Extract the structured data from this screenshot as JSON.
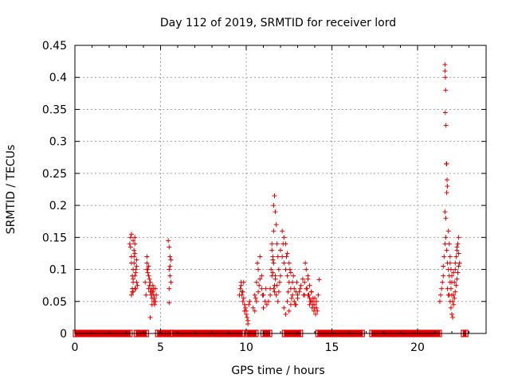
{
  "chart_data": {
    "type": "scatter",
    "title": "Day 112 of 2019, SRMTID for receiver lord",
    "xlabel": "GPS time / hours",
    "ylabel": "SRMTID / TECUs",
    "xlim": [
      0,
      24
    ],
    "ylim": [
      0,
      0.45
    ],
    "xticks": [
      0,
      5,
      10,
      15,
      20
    ],
    "yticks": [
      0,
      0.05,
      0.1,
      0.15,
      0.2,
      0.25,
      0.3,
      0.35,
      0.4,
      0.45
    ],
    "xtick_labels": [
      "0",
      "5",
      "10",
      "15",
      "20"
    ],
    "ytick_labels": [
      "0",
      "0.05",
      "0.1",
      "0.15",
      "0.2",
      "0.25",
      "0.3",
      "0.35",
      "0.4",
      "0.45"
    ],
    "grid": true,
    "marker": "+",
    "color": "#e00000",
    "series": [
      {
        "x": [
          3.2,
          3.25,
          3.3,
          3.3,
          3.35,
          3.4,
          3.4,
          3.45,
          3.5,
          3.5,
          3.55,
          3.6,
          3.3,
          3.35,
          3.4,
          3.45,
          3.5,
          3.55,
          3.6,
          3.65,
          3.3,
          3.4,
          3.5,
          3.6,
          3.35,
          3.45,
          3.55,
          3.25,
          3.4,
          3.5,
          4.1,
          4.15,
          4.2,
          4.2,
          4.25,
          4.3,
          4.35,
          4.4,
          4.45,
          4.5,
          4.55,
          4.6,
          4.65,
          4.7,
          4.75,
          4.2,
          4.3,
          4.4,
          4.5,
          4.6,
          4.7,
          4.25,
          4.35,
          4.45,
          4.55,
          4.65,
          4.4,
          4.5,
          4.3,
          4.6,
          5.45,
          5.5,
          5.55,
          5.6,
          5.5,
          5.55,
          5.6,
          5.5,
          5.55,
          5.5,
          9.6,
          9.65,
          9.7,
          9.75,
          9.8,
          9.85,
          9.9,
          9.95,
          10.0,
          10.05,
          10.1,
          10.15,
          10.2,
          9.7,
          9.8,
          9.9,
          10.0,
          10.1,
          9.75,
          9.85,
          10.4,
          10.5,
          10.6,
          10.7,
          10.8,
          10.9,
          11.0,
          11.1,
          11.2,
          10.5,
          10.6,
          10.7,
          10.8,
          10.9,
          11.0,
          10.55,
          10.75,
          10.95,
          11.15,
          10.65,
          11.3,
          11.4,
          11.5,
          11.5,
          11.55,
          11.6,
          11.6,
          11.65,
          11.7,
          11.75,
          11.8,
          11.85,
          11.9,
          11.95,
          12.0,
          11.4,
          11.5,
          11.6,
          11.7,
          11.8,
          11.9,
          11.45,
          11.55,
          11.65,
          11.75,
          11.85,
          11.6,
          11.65,
          11.7,
          11.55,
          12.0,
          12.1,
          12.2,
          12.3,
          12.4,
          12.5,
          12.6,
          12.7,
          12.8,
          12.9,
          13.0,
          13.1,
          13.2,
          13.3,
          13.4,
          12.1,
          12.2,
          12.3,
          12.4,
          12.5,
          12.6,
          12.7,
          12.8,
          12.9,
          13.0,
          12.2,
          12.3,
          12.4,
          12.5,
          12.6,
          12.15,
          12.35,
          12.55,
          12.75,
          12.95,
          13.15,
          13.35,
          12.45,
          12.65,
          12.85,
          13.4,
          13.5,
          13.6,
          13.7,
          13.8,
          13.9,
          14.0,
          14.1,
          14.2,
          13.5,
          13.6,
          13.7,
          13.8,
          13.9,
          14.0,
          14.1,
          13.55,
          13.65,
          13.75,
          13.85,
          13.95,
          14.05,
          13.6,
          13.8,
          14.0,
          14.25,
          13.45,
          13.7,
          13.9,
          14.15,
          21.3,
          21.35,
          21.4,
          21.45,
          21.5,
          21.5,
          21.55,
          21.6,
          21.65,
          21.7,
          21.75,
          21.8,
          21.85,
          21.9,
          21.95,
          22.0,
          22.05,
          22.1,
          22.15,
          22.2,
          22.25,
          22.3,
          22.35,
          22.4,
          22.45,
          21.6,
          21.6,
          21.62,
          21.64,
          21.62,
          21.66,
          21.68,
          21.7,
          21.72,
          21.74,
          21.7,
          21.6,
          21.65,
          21.8,
          21.85,
          21.9,
          21.95,
          22.0,
          21.85,
          21.9,
          21.95,
          22.0,
          22.05,
          22.1,
          22.15,
          22.2,
          22.25,
          22.3,
          22.35,
          22.4,
          21.75,
          21.8,
          22.0,
          22.2,
          22.4,
          21.9,
          22.1,
          22.3
        ],
        "y": [
          0.14,
          0.15,
          0.155,
          0.11,
          0.065,
          0.08,
          0.145,
          0.12,
          0.09,
          0.07,
          0.1,
          0.115,
          0.06,
          0.07,
          0.085,
          0.13,
          0.14,
          0.095,
          0.105,
          0.075,
          0.12,
          0.1,
          0.15,
          0.08,
          0.09,
          0.11,
          0.07,
          0.135,
          0.065,
          0.125,
          0.08,
          0.06,
          0.12,
          0.1,
          0.095,
          0.07,
          0.085,
          0.065,
          0.06,
          0.055,
          0.075,
          0.05,
          0.045,
          0.07,
          0.06,
          0.11,
          0.09,
          0.08,
          0.065,
          0.06,
          0.05,
          0.1,
          0.075,
          0.07,
          0.065,
          0.055,
          0.025,
          0.045,
          0.105,
          0.07,
          0.145,
          0.135,
          0.12,
          0.115,
          0.1,
          0.09,
          0.08,
          0.07,
          0.105,
          0.048,
          0.06,
          0.07,
          0.08,
          0.065,
          0.05,
          0.055,
          0.035,
          0.04,
          0.03,
          0.025,
          0.02,
          0.045,
          0.05,
          0.075,
          0.065,
          0.045,
          0.035,
          0.015,
          0.06,
          0.08,
          0.04,
          0.06,
          0.08,
          0.1,
          0.12,
          0.07,
          0.06,
          0.05,
          0.045,
          0.035,
          0.05,
          0.065,
          0.085,
          0.09,
          0.04,
          0.055,
          0.075,
          0.06,
          0.07,
          0.11,
          0.05,
          0.07,
          0.09,
          0.14,
          0.12,
          0.2,
          0.16,
          0.215,
          0.19,
          0.17,
          0.14,
          0.12,
          0.1,
          0.08,
          0.09,
          0.06,
          0.13,
          0.11,
          0.085,
          0.075,
          0.065,
          0.1,
          0.115,
          0.075,
          0.06,
          0.05,
          0.07,
          0.065,
          0.09,
          0.095,
          0.13,
          0.12,
          0.11,
          0.1,
          0.09,
          0.08,
          0.07,
          0.06,
          0.05,
          0.045,
          0.055,
          0.065,
          0.075,
          0.085,
          0.06,
          0.16,
          0.15,
          0.14,
          0.125,
          0.11,
          0.095,
          0.08,
          0.07,
          0.065,
          0.06,
          0.04,
          0.03,
          0.05,
          0.035,
          0.045,
          0.14,
          0.12,
          0.1,
          0.09,
          0.08,
          0.07,
          0.06,
          0.065,
          0.055,
          0.045,
          0.08,
          0.07,
          0.06,
          0.055,
          0.05,
          0.045,
          0.04,
          0.05,
          0.06,
          0.1,
          0.09,
          0.075,
          0.065,
          0.055,
          0.045,
          0.04,
          0.07,
          0.06,
          0.05,
          0.04,
          0.035,
          0.03,
          0.085,
          0.065,
          0.055,
          0.084,
          0.11,
          0.045,
          0.05,
          0.035,
          0.05,
          0.06,
          0.07,
          0.08,
          0.09,
          0.105,
          0.12,
          0.14,
          0.15,
          0.13,
          0.11,
          0.1,
          0.09,
          0.08,
          0.07,
          0.06,
          0.05,
          0.06,
          0.08,
          0.1,
          0.12,
          0.13,
          0.14,
          0.15,
          0.11,
          0.42,
          0.41,
          0.4,
          0.38,
          0.345,
          0.325,
          0.265,
          0.265,
          0.24,
          0.23,
          0.22,
          0.19,
          0.18,
          0.16,
          0.14,
          0.12,
          0.1,
          0.08,
          0.06,
          0.05,
          0.04,
          0.03,
          0.025,
          0.045,
          0.055,
          0.065,
          0.075,
          0.085,
          0.095,
          0.105,
          0.07,
          0.06,
          0.09,
          0.11,
          0.125,
          0.11,
          0.095,
          0.135
        ]
      },
      {
        "x": [
          0.1,
          0.35,
          0.6,
          0.85,
          1.1,
          1.35,
          1.6,
          1.85,
          2.1,
          2.35,
          2.6,
          2.85,
          3.1,
          3.8,
          4.0,
          4.95,
          5.2,
          5.45,
          5.8,
          6.05,
          6.3,
          6.55,
          6.8,
          7.05,
          7.3,
          7.55,
          7.8,
          8.05,
          8.3,
          8.55,
          8.8,
          9.05,
          9.3,
          9.55,
          10.0,
          10.5,
          10.7,
          11.1,
          11.3,
          12.35,
          12.6,
          12.85,
          13.1,
          14.2,
          14.45,
          14.7,
          14.95,
          15.2,
          15.45,
          15.7,
          15.95,
          16.2,
          16.45,
          16.65,
          16.9,
          17.35,
          17.6,
          17.85,
          18.1,
          18.35,
          18.6,
          18.85,
          19.1,
          19.35,
          19.6,
          19.85,
          20.1,
          20.35,
          20.6,
          20.85,
          21.1,
          21.3,
          22.7
        ],
        "y": [
          0,
          0,
          0,
          0,
          0,
          0,
          0,
          0,
          0,
          0,
          0,
          0,
          0,
          0,
          0,
          0,
          0,
          0,
          0,
          0,
          0,
          0,
          0,
          0,
          0,
          0,
          0,
          0,
          0,
          0,
          0,
          0,
          0,
          0,
          0,
          0,
          0,
          0,
          0,
          0,
          0,
          0,
          0,
          0,
          0,
          0,
          0,
          0,
          0,
          0,
          0,
          0,
          0,
          0,
          0,
          0,
          0,
          0,
          0,
          0,
          0,
          0,
          0,
          0,
          0,
          0,
          0,
          0,
          0,
          0,
          0,
          0,
          0
        ]
      }
    ],
    "zero_line_segments": [
      [
        0.0,
        3.25
      ],
      [
        3.55,
        4.2
      ],
      [
        4.8,
        5.6
      ],
      [
        5.7,
        9.8
      ],
      [
        10.05,
        10.6
      ],
      [
        10.95,
        11.4
      ],
      [
        12.2,
        13.2
      ],
      [
        14.15,
        16.8
      ],
      [
        17.3,
        21.3
      ],
      [
        22.65,
        22.85
      ]
    ]
  }
}
